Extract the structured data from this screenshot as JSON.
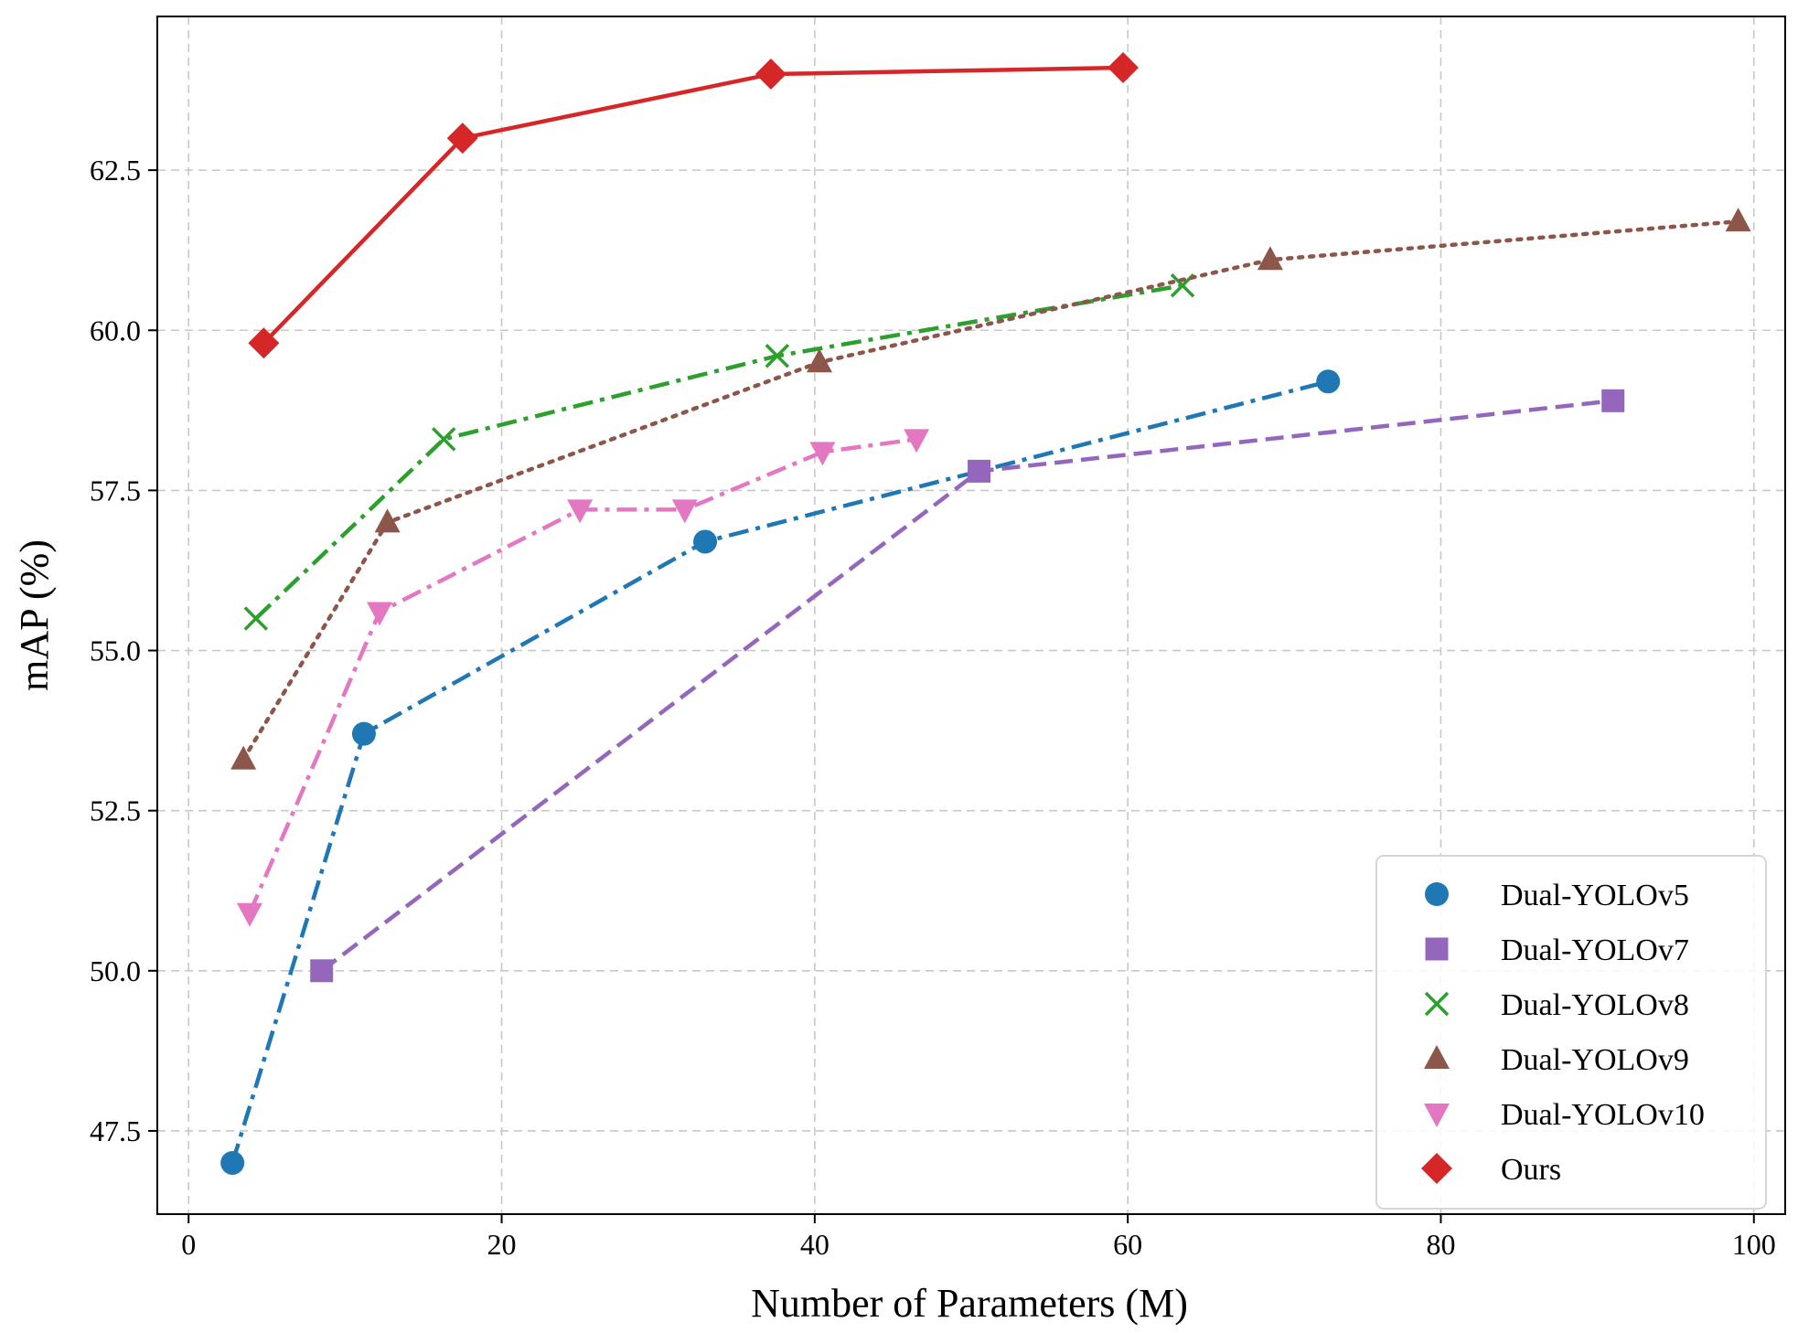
{
  "chart_data": {
    "type": "line",
    "title": "",
    "xlabel": "Number of Parameters (M)",
    "ylabel": "mAP (%)",
    "xlim": [
      -2,
      102
    ],
    "ylim": [
      46.2,
      64.9
    ],
    "xticks": [
      0,
      20,
      40,
      60,
      80,
      100
    ],
    "yticks": [
      47.5,
      50.0,
      52.5,
      55.0,
      57.5,
      60.0,
      62.5
    ],
    "xtick_labels": [
      "0",
      "20",
      "40",
      "60",
      "80",
      "100"
    ],
    "ytick_labels": [
      "47.5",
      "50.0",
      "52.5",
      "55.0",
      "57.5",
      "60.0",
      "62.5"
    ],
    "grid": true,
    "legend_position": "lower-right",
    "series": [
      {
        "name": "Dual-YOLOv5",
        "color": "#1f77b4",
        "marker": "circle",
        "line_style": "dashdot",
        "x": [
          2.8,
          11.2,
          33.0,
          72.8
        ],
        "y": [
          47.0,
          53.7,
          56.7,
          59.2
        ]
      },
      {
        "name": "Dual-YOLOv7",
        "color": "#9467bd",
        "marker": "square",
        "line_style": "dashed",
        "x": [
          8.5,
          50.5,
          91.0
        ],
        "y": [
          50.0,
          57.8,
          58.9
        ]
      },
      {
        "name": "Dual-YOLOv8",
        "color": "#2ca02c",
        "marker": "x",
        "line_style": "dashdot",
        "x": [
          4.3,
          16.3,
          37.6,
          63.5
        ],
        "y": [
          55.5,
          58.3,
          59.6,
          60.7
        ]
      },
      {
        "name": "Dual-YOLOv9",
        "color": "#8c564b",
        "marker": "triangle-up",
        "line_style": "dotted",
        "x": [
          3.5,
          12.7,
          40.3,
          69.1,
          99.0
        ],
        "y": [
          53.3,
          57.0,
          59.5,
          61.1,
          61.7
        ]
      },
      {
        "name": "Dual-YOLOv10",
        "color": "#e377c2",
        "marker": "triangle-down",
        "line_style": "dashdot",
        "x": [
          3.9,
          12.2,
          25.0,
          31.7,
          40.5,
          46.5
        ],
        "y": [
          50.9,
          55.6,
          57.2,
          57.2,
          58.1,
          58.3
        ]
      },
      {
        "name": "Ours",
        "color": "#d62728",
        "marker": "diamond",
        "line_style": "solid",
        "x": [
          4.8,
          17.5,
          37.2,
          59.7
        ],
        "y": [
          59.8,
          63.0,
          64.0,
          64.1
        ]
      }
    ]
  }
}
